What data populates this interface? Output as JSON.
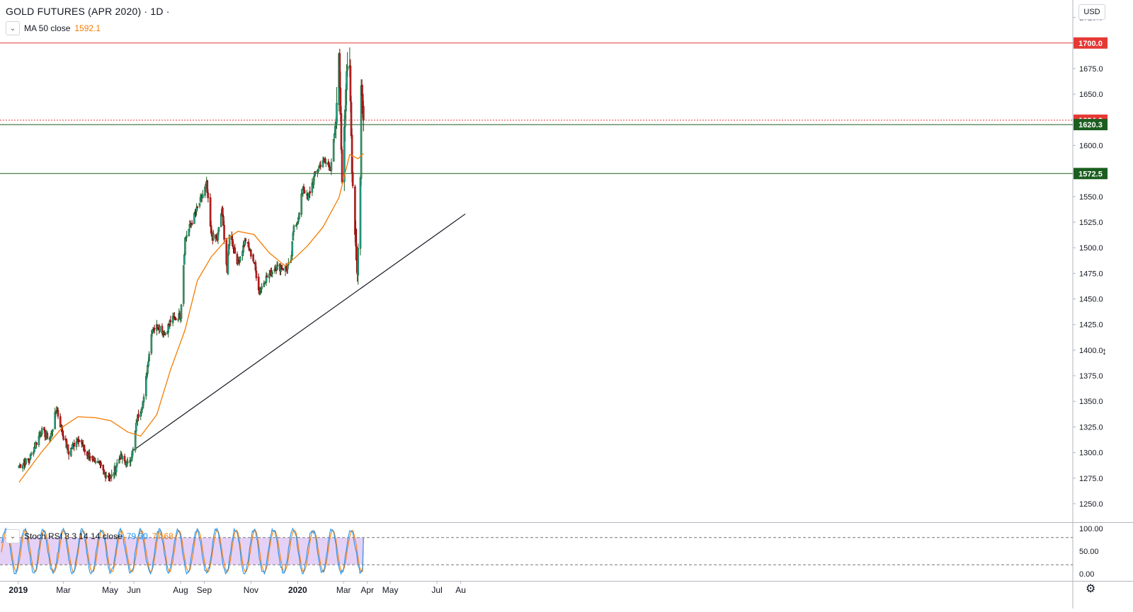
{
  "header": {
    "title": "GOLD FUTURES (APR 2020) · 1D ·",
    "ma_label": "MA 50 close",
    "ma_value": "1592.1",
    "currency": "USD"
  },
  "stoch": {
    "label": "Stoch RSI 3 3 14 14 close",
    "k_value": "79.30",
    "d_value": "77.68"
  },
  "chart_data": [
    {
      "type": "candlestick",
      "title": "GOLD FUTURES (APR 2020)",
      "interval": "1D",
      "y_ticks": [
        "1250.0",
        "1275.0",
        "1300.0",
        "1325.0",
        "1350.0",
        "1375.0",
        "1400.0",
        "1425.0",
        "1450.0",
        "1475.0",
        "1500.0",
        "1525.0",
        "1550.0",
        "1575.0",
        "1600.0",
        "1625.0",
        "1650.0",
        "1675.0",
        "1700.0",
        "1725.0"
      ],
      "x_labels": [
        "2019",
        "Mar",
        "May",
        "Jun",
        "Aug",
        "Sep",
        "Nov",
        "2020",
        "Mar",
        "Apr",
        "May",
        "Jul",
        "Au"
      ],
      "ylim": [
        1232,
        1742
      ],
      "colors": {
        "up": "#26a69a",
        "down": "#c62828",
        "ma": "#f57c00",
        "up_border": "#1b5e20",
        "down_border": "#7f0000"
      },
      "horizontal_levels": [
        {
          "value": 1700.0,
          "label": "1700.0",
          "color": "#e53935",
          "style": "solid"
        },
        {
          "value": 1624.6,
          "label": "1624.6",
          "color": "#e53935",
          "style": "dotted"
        },
        {
          "value": 1620.3,
          "label": "1620.3",
          "color": "#1b5e20",
          "style": "solid"
        },
        {
          "value": 1572.5,
          "label": "1572.5",
          "color": "#1b5e20",
          "style": "solid"
        }
      ],
      "trendline": {
        "from": [
          "2019-05-31",
          1302
        ],
        "to": [
          "2020-08-07",
          1533
        ],
        "color": "#131722"
      },
      "anchors": [
        [
          "2019-01-02",
          1287
        ],
        [
          "2019-01-15",
          1293
        ],
        [
          "2019-01-31",
          1321
        ],
        [
          "2019-02-12",
          1314
        ],
        [
          "2019-02-20",
          1343
        ],
        [
          "2019-02-28",
          1318
        ],
        [
          "2019-03-08",
          1300
        ],
        [
          "2019-03-20",
          1315
        ],
        [
          "2019-04-01",
          1297
        ],
        [
          "2019-04-12",
          1293
        ],
        [
          "2019-04-23",
          1280
        ],
        [
          "2019-05-02",
          1275
        ],
        [
          "2019-05-14",
          1296
        ],
        [
          "2019-05-24",
          1288
        ],
        [
          "2019-05-31",
          1302
        ],
        [
          "2019-06-05",
          1332
        ],
        [
          "2019-06-14",
          1352
        ],
        [
          "2019-06-20",
          1392
        ],
        [
          "2019-06-25",
          1421
        ],
        [
          "2019-07-03",
          1424
        ],
        [
          "2019-07-12",
          1416
        ],
        [
          "2019-07-19",
          1429
        ],
        [
          "2019-08-01",
          1434
        ],
        [
          "2019-08-07",
          1509
        ],
        [
          "2019-08-13",
          1520
        ],
        [
          "2019-08-23",
          1538
        ],
        [
          "2019-09-04",
          1562
        ],
        [
          "2019-09-10",
          1512
        ],
        [
          "2019-09-18",
          1508
        ],
        [
          "2019-09-24",
          1538
        ],
        [
          "2019-10-01",
          1476
        ],
        [
          "2019-10-04",
          1515
        ],
        [
          "2019-10-15",
          1485
        ],
        [
          "2019-10-25",
          1508
        ],
        [
          "2019-11-05",
          1486
        ],
        [
          "2019-11-12",
          1457
        ],
        [
          "2019-11-20",
          1470
        ],
        [
          "2019-12-03",
          1481
        ],
        [
          "2019-12-16",
          1480
        ],
        [
          "2019-12-23",
          1484
        ],
        [
          "2019-12-27",
          1522
        ],
        [
          "2020-01-02",
          1528
        ],
        [
          "2020-01-08",
          1560
        ],
        [
          "2020-01-14",
          1547
        ],
        [
          "2020-01-24",
          1573
        ],
        [
          "2020-02-03",
          1586
        ],
        [
          "2020-02-13",
          1578
        ],
        [
          "2020-02-20",
          1622
        ],
        [
          "2020-02-24",
          1690
        ],
        [
          "2020-02-28",
          1566
        ],
        [
          "2020-03-05",
          1673
        ],
        [
          "2020-03-09",
          1676
        ],
        [
          "2020-03-12",
          1576
        ],
        [
          "2020-03-16",
          1515
        ],
        [
          "2020-03-19",
          1476
        ],
        [
          "2020-03-23",
          1568
        ],
        [
          "2020-03-24",
          1660
        ],
        [
          "2020-03-27",
          1624.6
        ]
      ],
      "ma_anchors": [
        [
          "2019-01-02",
          1271
        ],
        [
          "2019-01-31",
          1300
        ],
        [
          "2019-02-28",
          1325
        ],
        [
          "2019-03-20",
          1335
        ],
        [
          "2019-04-12",
          1334
        ],
        [
          "2019-05-02",
          1331
        ],
        [
          "2019-05-24",
          1320
        ],
        [
          "2019-06-10",
          1316
        ],
        [
          "2019-07-01",
          1337
        ],
        [
          "2019-07-19",
          1381
        ],
        [
          "2019-08-07",
          1420
        ],
        [
          "2019-08-23",
          1468
        ],
        [
          "2019-09-10",
          1491
        ],
        [
          "2019-10-01",
          1509
        ],
        [
          "2019-10-15",
          1516
        ],
        [
          "2019-11-05",
          1513
        ],
        [
          "2019-11-25",
          1495
        ],
        [
          "2019-12-16",
          1482
        ],
        [
          "2019-12-31",
          1492
        ],
        [
          "2020-01-14",
          1502
        ],
        [
          "2020-02-03",
          1520
        ],
        [
          "2020-02-24",
          1549
        ],
        [
          "2020-03-09",
          1591
        ],
        [
          "2020-03-20",
          1587
        ],
        [
          "2020-03-27",
          1592.1
        ]
      ],
      "stoch_k_last": 79.3,
      "stoch_d_last": 77.68,
      "stoch_ticks": [
        "100.00",
        "50.00",
        "0.00"
      ],
      "stoch_band": [
        20,
        80
      ]
    }
  ]
}
